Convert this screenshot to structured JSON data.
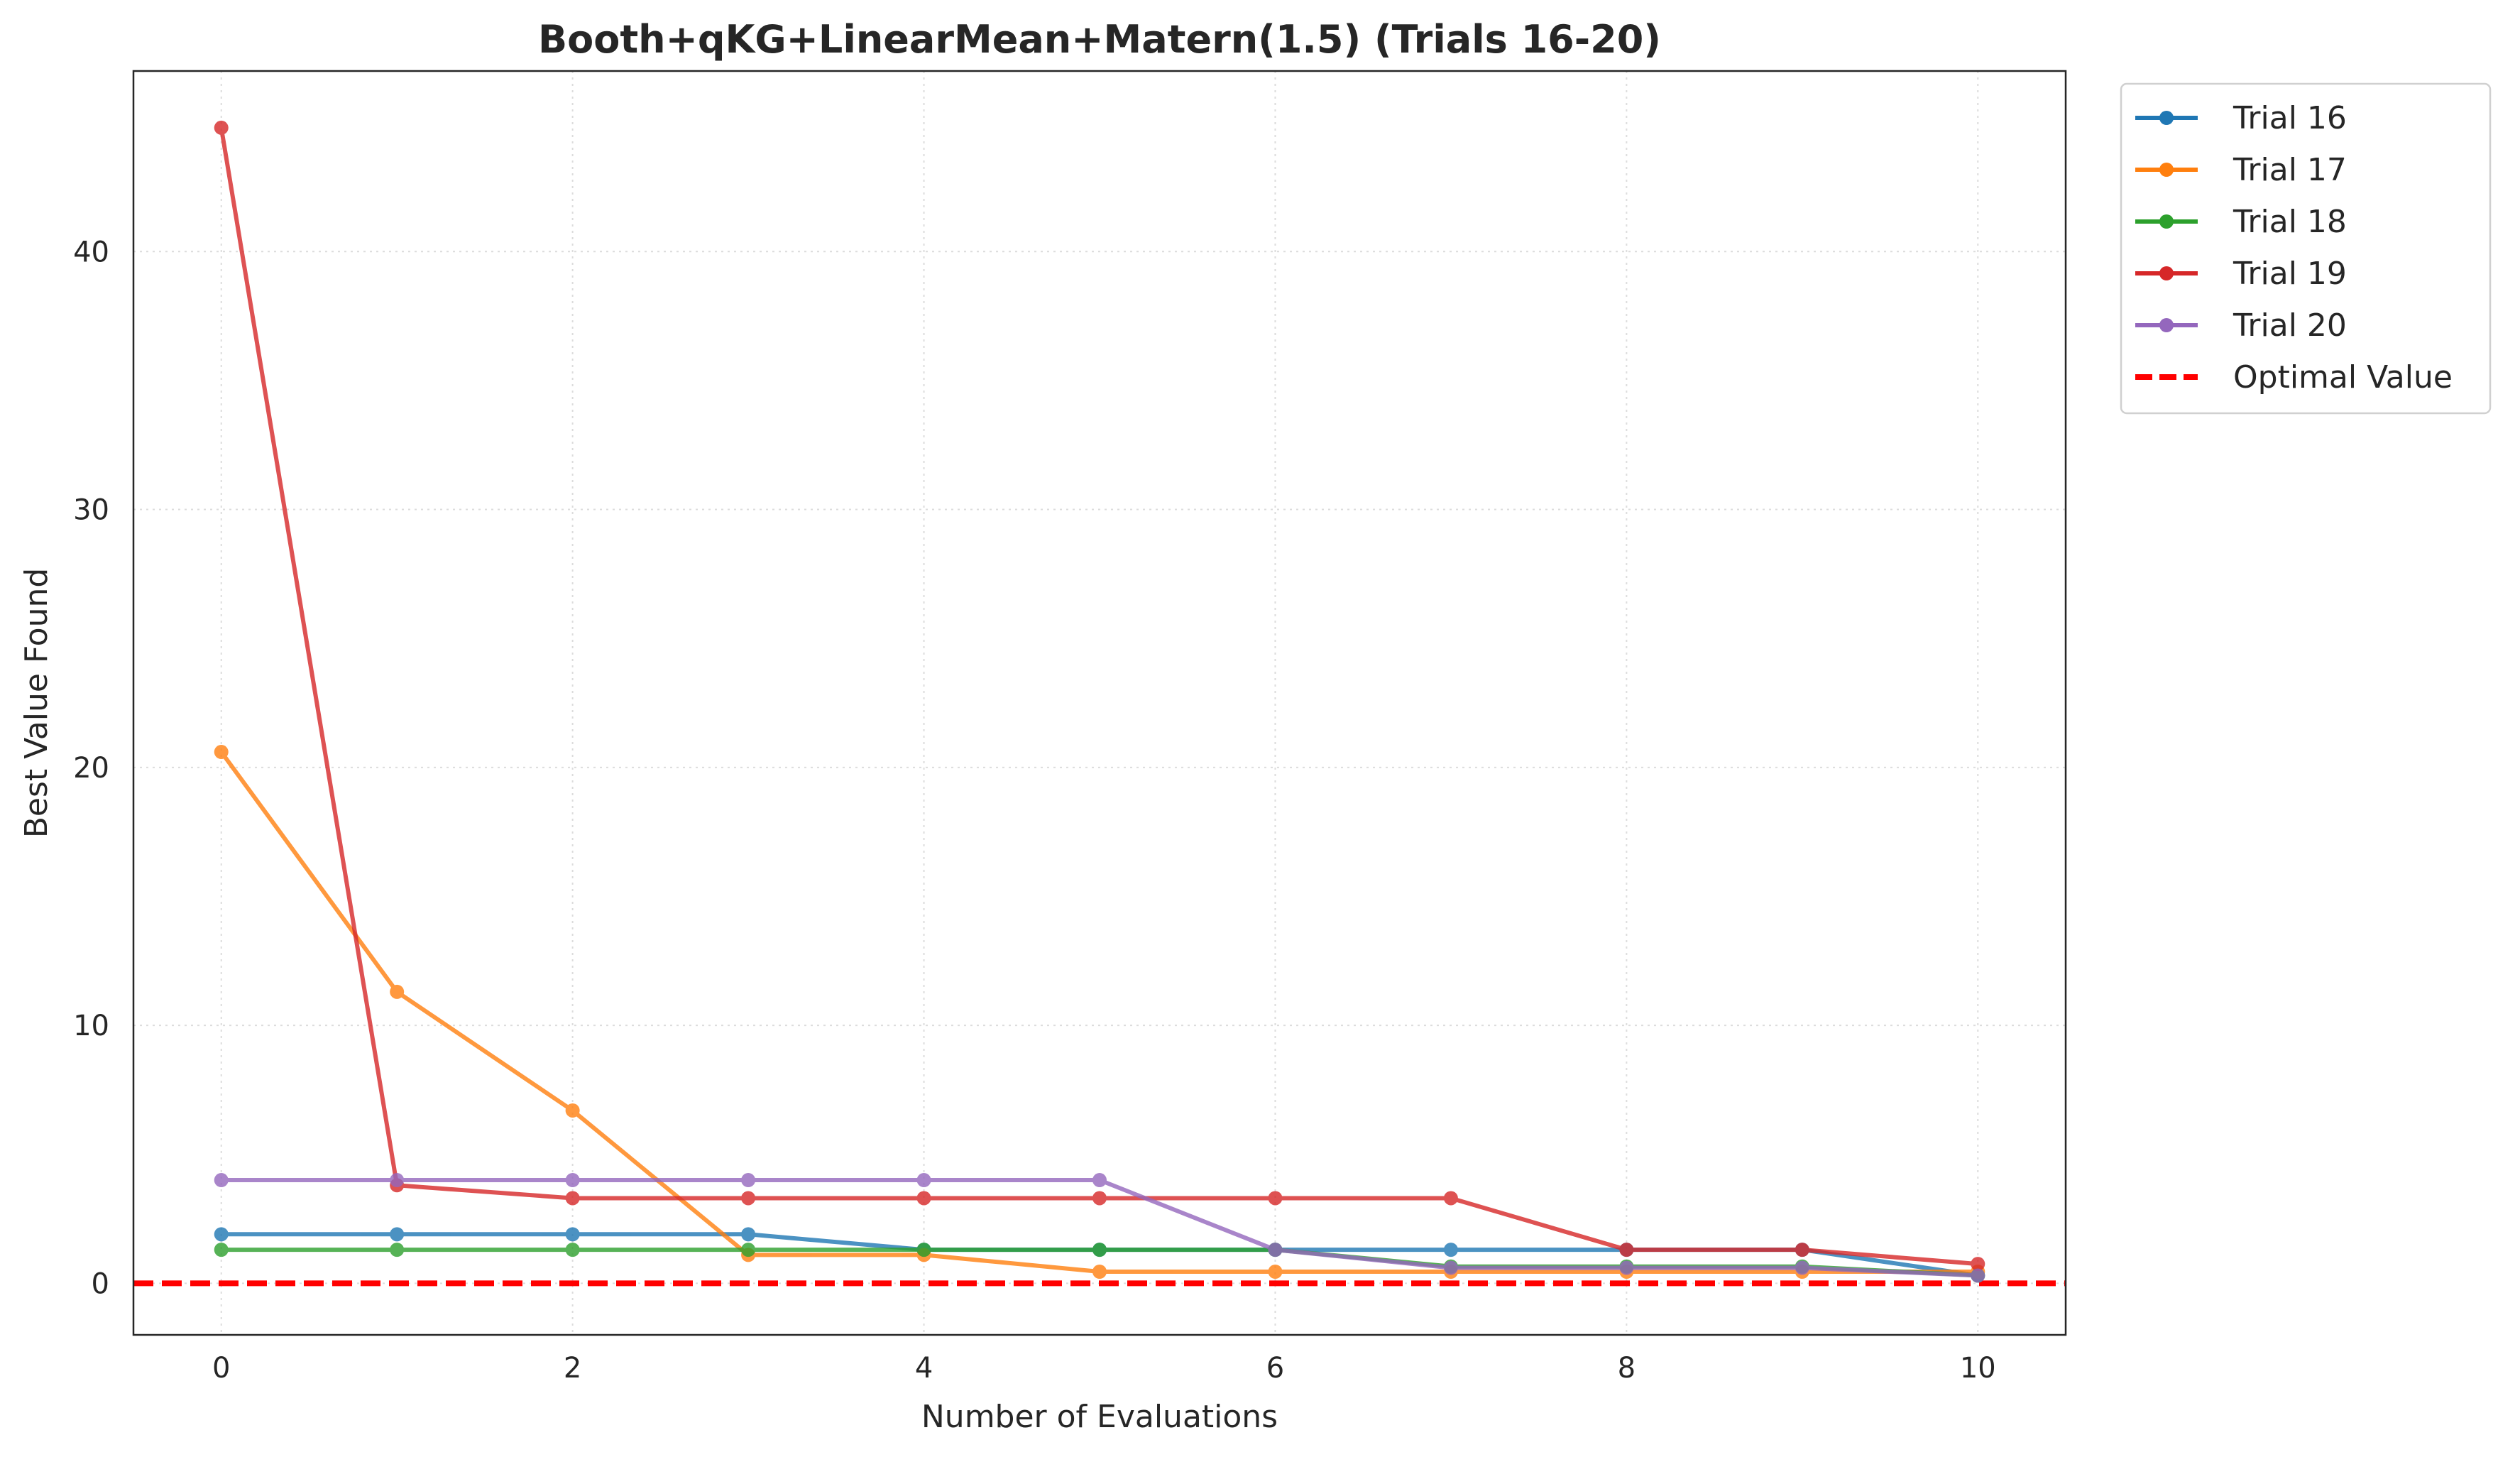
{
  "chart_data": {
    "type": "line",
    "title": "Booth+qKG+LinearMean+Matern(1.5) (Trials 16-20)",
    "xlabel": "Number of Evaluations",
    "ylabel": "Best Value Found",
    "xlim": [
      -0.5,
      10.5
    ],
    "ylim": [
      -2,
      47
    ],
    "xticks": [
      0,
      2,
      4,
      6,
      8,
      10
    ],
    "yticks": [
      0,
      10,
      20,
      30,
      40
    ],
    "grid": true,
    "legend_position": "outside-top-right",
    "x": [
      0,
      1,
      2,
      3,
      4,
      5,
      6,
      7,
      8,
      9,
      10
    ],
    "series": [
      {
        "name": "Trial 16",
        "color": "#1f77b4",
        "values": [
          1.9,
          1.9,
          1.9,
          1.9,
          1.3,
          1.3,
          1.3,
          1.3,
          1.3,
          1.3,
          0.3
        ]
      },
      {
        "name": "Trial 17",
        "color": "#ff7f0e",
        "values": [
          20.6,
          11.3,
          6.7,
          1.1,
          1.1,
          0.45,
          0.45,
          0.45,
          0.45,
          0.45,
          0.45
        ]
      },
      {
        "name": "Trial 18",
        "color": "#2ca02c",
        "values": [
          1.3,
          1.3,
          1.3,
          1.3,
          1.3,
          1.3,
          1.3,
          0.65,
          0.65,
          0.65,
          0.3
        ]
      },
      {
        "name": "Trial 19",
        "color": "#d62728",
        "values": [
          44.8,
          3.8,
          3.3,
          3.3,
          3.3,
          3.3,
          3.3,
          3.3,
          1.3,
          1.3,
          0.75
        ]
      },
      {
        "name": "Trial 20",
        "color": "#9467bd",
        "values": [
          4.0,
          4.0,
          4.0,
          4.0,
          4.0,
          4.0,
          1.3,
          0.6,
          0.6,
          0.6,
          0.3
        ]
      }
    ],
    "reference_line": {
      "name": "Optimal Value",
      "y": 0,
      "color": "#ff0000",
      "style": "dashed"
    }
  }
}
